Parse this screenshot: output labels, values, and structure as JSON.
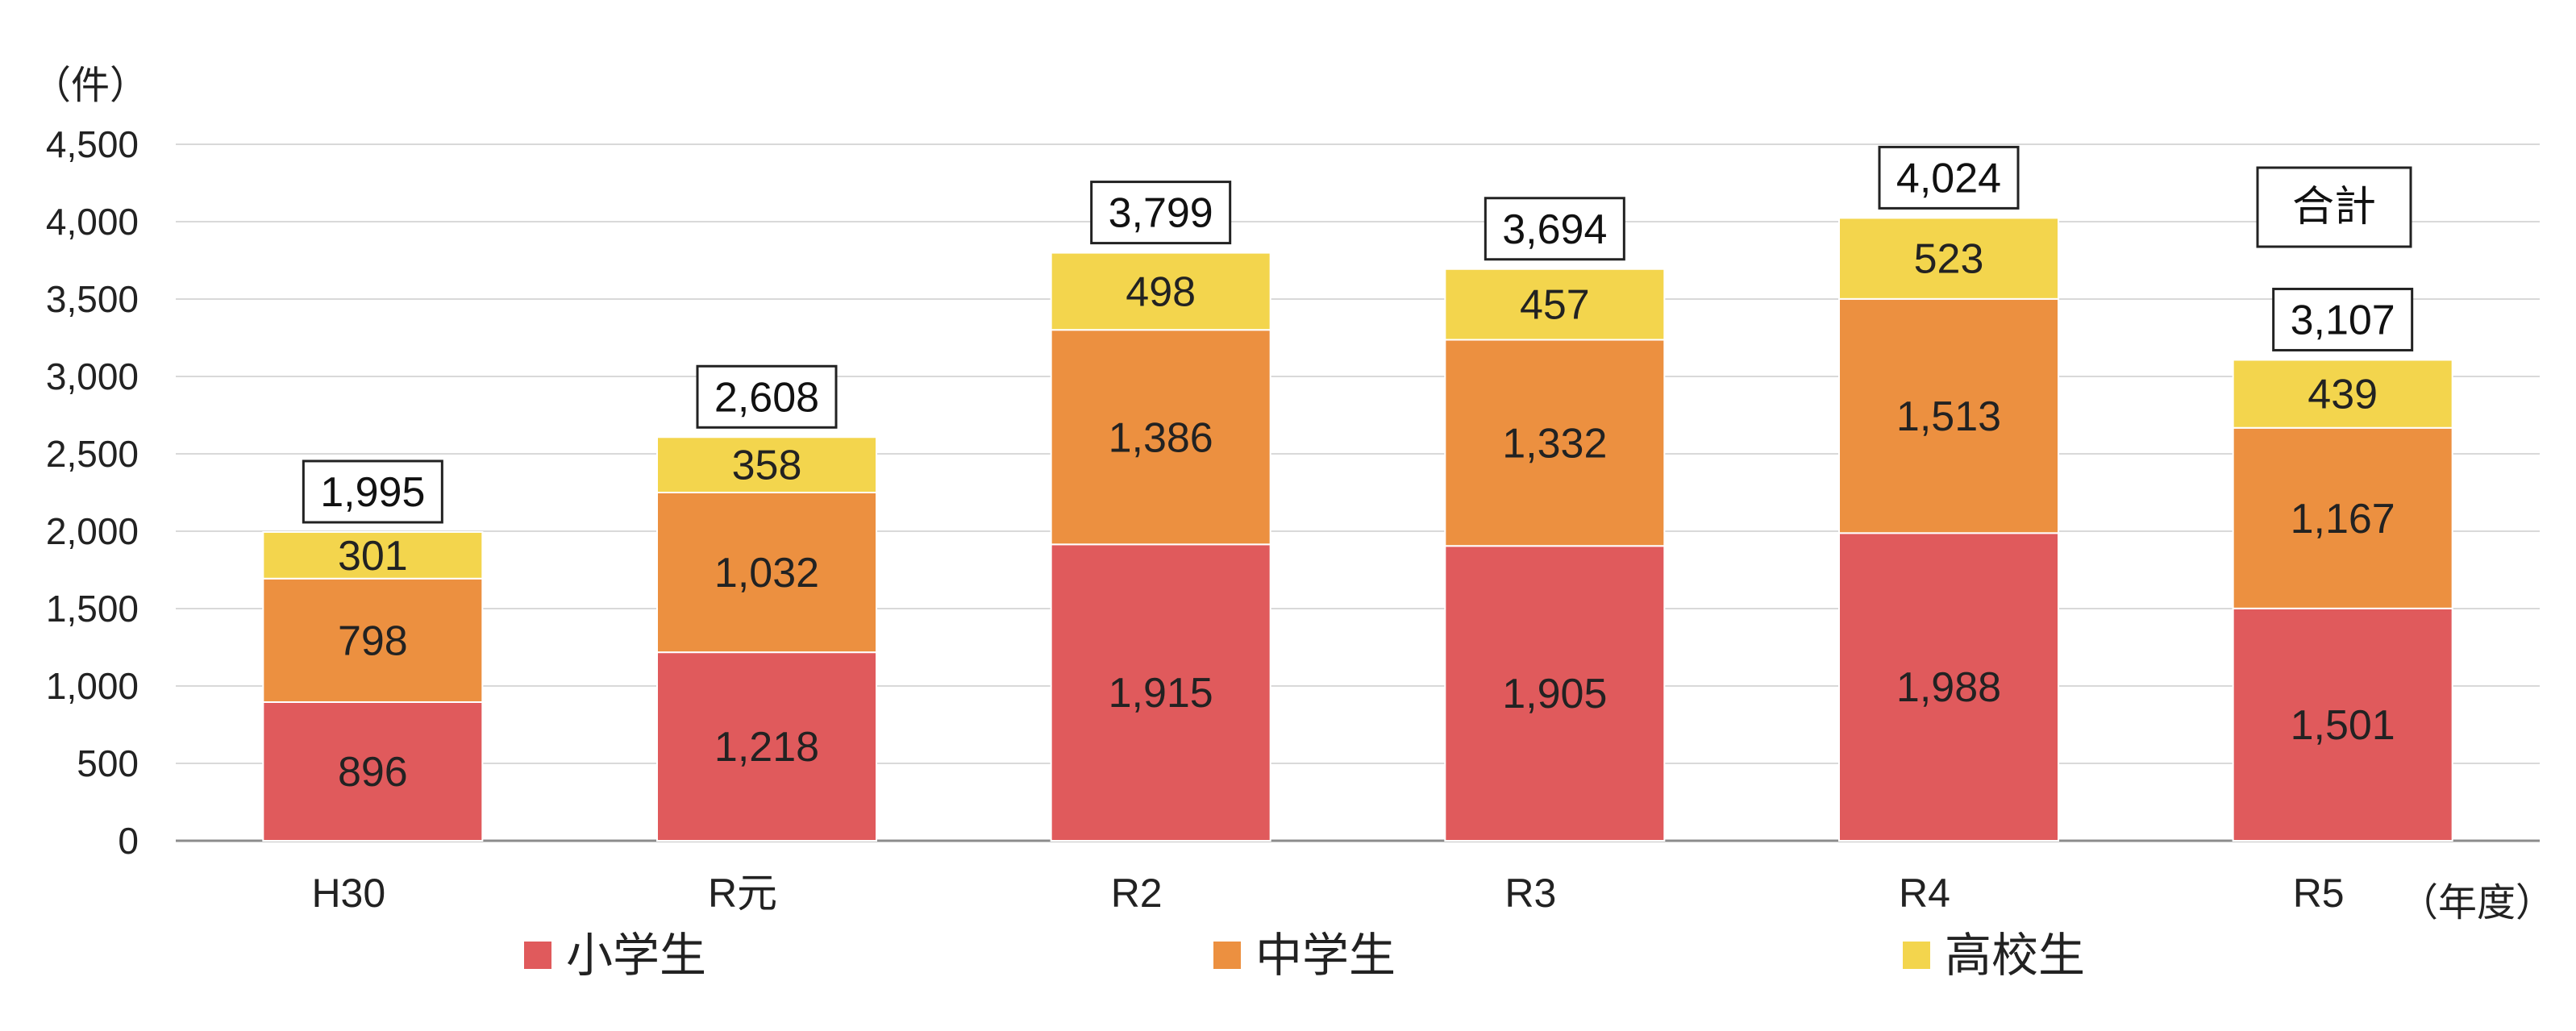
{
  "chart_data": {
    "type": "bar",
    "stacked": true,
    "y_unit": "（件）",
    "x_unit": "（年度）",
    "categories": [
      "H30",
      "R元",
      "R2",
      "R3",
      "R4",
      "R5"
    ],
    "series": [
      {
        "name": "小学生",
        "color": "#e05a5c",
        "values": [
          896,
          1218,
          1915,
          1905,
          1988,
          1501
        ]
      },
      {
        "name": "中学生",
        "color": "#ec9040",
        "values": [
          798,
          1032,
          1386,
          1332,
          1513,
          1167
        ]
      },
      {
        "name": "高校生",
        "color": "#f3d54d",
        "values": [
          301,
          358,
          498,
          457,
          523,
          439
        ]
      }
    ],
    "totals": [
      1995,
      2608,
      3799,
      3694,
      4024,
      3107
    ],
    "totals_legend_label": "合計",
    "yticks": [
      "0",
      "500",
      "1,000",
      "1,500",
      "2,000",
      "2,500",
      "3,000",
      "3,500",
      "4,000",
      "4,500"
    ],
    "ylim": [
      0,
      4500
    ],
    "grid": true,
    "legend_position": "bottom"
  }
}
